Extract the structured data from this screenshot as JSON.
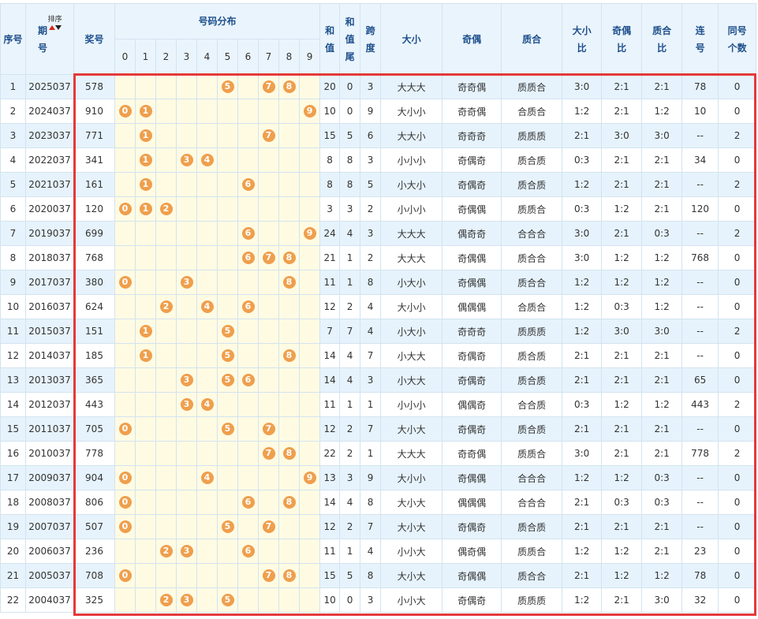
{
  "header": {
    "columns": [
      "序号",
      "期号",
      "奖号",
      "号码分布",
      "和值",
      "和值尾",
      "跨度",
      "大小",
      "奇偶",
      "质合",
      "大小比",
      "奇偶比",
      "质合比",
      "连号",
      "同号个数"
    ],
    "sort": "排序",
    "digits": [
      0,
      1,
      2,
      3,
      4,
      5,
      6,
      7,
      8,
      9
    ]
  },
  "table": {
    "rows": [
      [
        1,
        2025037,
        578,
        [
          null,
          null,
          null,
          null,
          null,
          5,
          null,
          7,
          8,
          null
        ],
        20,
        0,
        3,
        "大大大",
        "奇奇偶",
        "质质合",
        "3:0",
        "2:1",
        "2:1",
        78,
        0
      ],
      [
        2,
        2024037,
        910,
        [
          0,
          1,
          null,
          null,
          null,
          null,
          null,
          null,
          null,
          9
        ],
        10,
        0,
        9,
        "大小小",
        "奇奇偶",
        "合质合",
        "1:2",
        "2:1",
        "1:2",
        10,
        0
      ],
      [
        3,
        2023037,
        771,
        [
          null,
          1,
          null,
          null,
          null,
          null,
          null,
          7,
          null,
          null
        ],
        15,
        5,
        6,
        "大大小",
        "奇奇奇",
        "质质质",
        "2:1",
        "3:0",
        "3:0",
        "--",
        2
      ],
      [
        4,
        2022037,
        341,
        [
          null,
          1,
          null,
          3,
          4,
          null,
          null,
          null,
          null,
          null
        ],
        8,
        8,
        3,
        "小小小",
        "奇偶奇",
        "质合质",
        "0:3",
        "2:1",
        "2:1",
        34,
        0
      ],
      [
        5,
        2021037,
        161,
        [
          null,
          1,
          null,
          null,
          null,
          null,
          6,
          null,
          null,
          null
        ],
        8,
        8,
        5,
        "小大小",
        "奇偶奇",
        "质合质",
        "1:2",
        "2:1",
        "2:1",
        "--",
        2
      ],
      [
        6,
        2020037,
        120,
        [
          0,
          1,
          2,
          null,
          null,
          null,
          null,
          null,
          null,
          null
        ],
        3,
        3,
        2,
        "小小小",
        "奇偶偶",
        "质质合",
        "0:3",
        "1:2",
        "2:1",
        120,
        0
      ],
      [
        7,
        2019037,
        699,
        [
          null,
          null,
          null,
          null,
          null,
          null,
          6,
          null,
          null,
          9
        ],
        24,
        4,
        3,
        "大大大",
        "偶奇奇",
        "合合合",
        "3:0",
        "2:1",
        "0:3",
        "--",
        2
      ],
      [
        8,
        2018037,
        768,
        [
          null,
          null,
          null,
          null,
          null,
          null,
          6,
          7,
          8,
          null
        ],
        21,
        1,
        2,
        "大大大",
        "奇偶偶",
        "质合合",
        "3:0",
        "1:2",
        "1:2",
        768,
        0
      ],
      [
        9,
        2017037,
        380,
        [
          0,
          null,
          null,
          3,
          null,
          null,
          null,
          null,
          8,
          null
        ],
        11,
        1,
        8,
        "小大小",
        "奇偶偶",
        "质合合",
        "1:2",
        "1:2",
        "1:2",
        "--",
        0
      ],
      [
        10,
        2016037,
        624,
        [
          null,
          null,
          2,
          null,
          4,
          null,
          6,
          null,
          null,
          null
        ],
        12,
        2,
        4,
        "大小小",
        "偶偶偶",
        "合质合",
        "1:2",
        "0:3",
        "1:2",
        "--",
        0
      ],
      [
        11,
        2015037,
        151,
        [
          null,
          1,
          null,
          null,
          null,
          5,
          null,
          null,
          null,
          null
        ],
        7,
        7,
        4,
        "小大小",
        "奇奇奇",
        "质质质",
        "1:2",
        "3:0",
        "3:0",
        "--",
        2
      ],
      [
        12,
        2014037,
        185,
        [
          null,
          1,
          null,
          null,
          null,
          5,
          null,
          null,
          8,
          null
        ],
        14,
        4,
        7,
        "小大大",
        "奇偶奇",
        "质合质",
        "2:1",
        "2:1",
        "2:1",
        "--",
        0
      ],
      [
        13,
        2013037,
        365,
        [
          null,
          null,
          null,
          3,
          null,
          5,
          6,
          null,
          null,
          null
        ],
        14,
        4,
        3,
        "小大大",
        "奇偶奇",
        "质合质",
        "2:1",
        "2:1",
        "2:1",
        65,
        0
      ],
      [
        14,
        2012037,
        443,
        [
          null,
          null,
          null,
          3,
          4,
          null,
          null,
          null,
          null,
          null
        ],
        11,
        1,
        1,
        "小小小",
        "偶偶奇",
        "合合质",
        "0:3",
        "1:2",
        "1:2",
        443,
        2
      ],
      [
        15,
        2011037,
        705,
        [
          0,
          null,
          null,
          null,
          null,
          5,
          null,
          7,
          null,
          null
        ],
        12,
        2,
        7,
        "大小大",
        "奇偶奇",
        "质合质",
        "2:1",
        "2:1",
        "2:1",
        "--",
        0
      ],
      [
        16,
        2010037,
        778,
        [
          null,
          null,
          null,
          null,
          null,
          null,
          null,
          7,
          8,
          null
        ],
        22,
        2,
        1,
        "大大大",
        "奇奇偶",
        "质质合",
        "3:0",
        "2:1",
        "2:1",
        778,
        2
      ],
      [
        17,
        2009037,
        904,
        [
          0,
          null,
          null,
          null,
          4,
          null,
          null,
          null,
          null,
          9
        ],
        13,
        3,
        9,
        "大小小",
        "奇偶偶",
        "合合合",
        "1:2",
        "1:2",
        "0:3",
        "--",
        0
      ],
      [
        18,
        2008037,
        806,
        [
          0,
          null,
          null,
          null,
          null,
          null,
          6,
          null,
          8,
          null
        ],
        14,
        4,
        8,
        "大小大",
        "偶偶偶",
        "合合合",
        "2:1",
        "0:3",
        "0:3",
        "--",
        0
      ],
      [
        19,
        2007037,
        507,
        [
          0,
          null,
          null,
          null,
          null,
          5,
          null,
          7,
          null,
          null
        ],
        12,
        2,
        7,
        "大小大",
        "奇偶奇",
        "质合质",
        "2:1",
        "2:1",
        "2:1",
        "--",
        0
      ],
      [
        20,
        2006037,
        236,
        [
          null,
          null,
          2,
          3,
          null,
          null,
          6,
          null,
          null,
          null
        ],
        11,
        1,
        4,
        "小小大",
        "偶奇偶",
        "质质合",
        "1:2",
        "1:2",
        "2:1",
        23,
        0
      ],
      [
        21,
        2005037,
        708,
        [
          0,
          null,
          null,
          null,
          null,
          null,
          null,
          7,
          8,
          null
        ],
        15,
        5,
        8,
        "大小大",
        "奇偶偶",
        "质合合",
        "2:1",
        "1:2",
        "1:2",
        78,
        0
      ],
      [
        22,
        2004037,
        325,
        [
          null,
          null,
          2,
          3,
          null,
          5,
          null,
          null,
          null,
          null
        ],
        10,
        0,
        3,
        "小小大",
        "奇偶奇",
        "质质质",
        "1:2",
        "2:1",
        "3:0",
        32,
        0
      ]
    ]
  }
}
